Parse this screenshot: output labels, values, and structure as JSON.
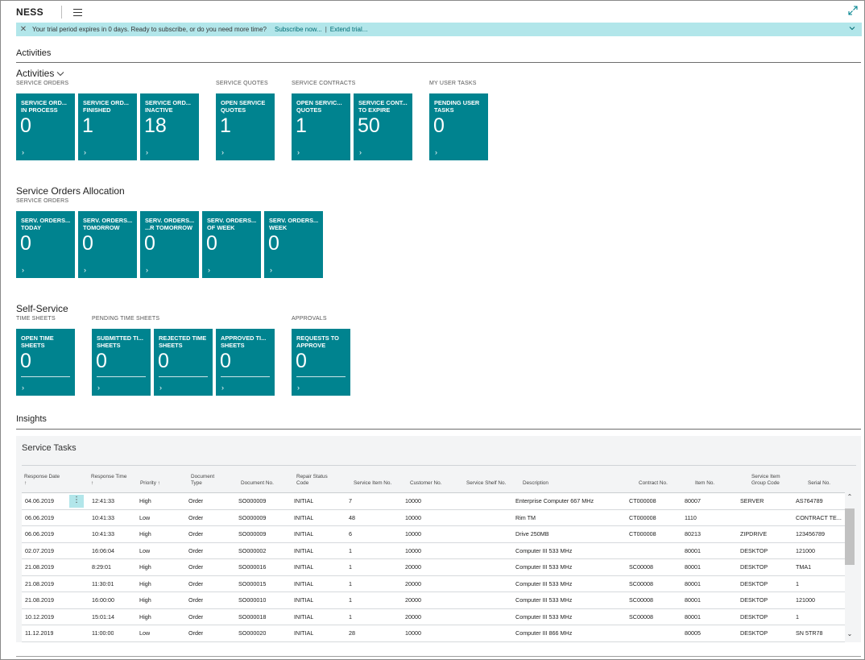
{
  "header": {
    "title": "NESS"
  },
  "banner": {
    "message": "Your trial period expires in 0 days. Ready to subscribe, or do you need more time?",
    "subscribe": "Subscribe now...",
    "separator": "|",
    "extend": "Extend trial..."
  },
  "sections": {
    "activities_header": "Activities",
    "insights_header": "Insights"
  },
  "activities": {
    "title": "Activities",
    "service_orders": {
      "label": "SERVICE ORDERS",
      "tiles": [
        {
          "label": "SERVICE ORD...\nIN PROCESS",
          "value": "0"
        },
        {
          "label": "SERVICE ORD...\nFINISHED",
          "value": "1"
        },
        {
          "label": "SERVICE ORD...\nINACTIVE",
          "value": "18"
        }
      ]
    },
    "service_quotes": {
      "label": "SERVICE QUOTES",
      "tiles": [
        {
          "label": "OPEN SERVICE\nQUOTES",
          "value": "1"
        }
      ]
    },
    "service_contracts": {
      "label": "SERVICE CONTRACTS",
      "tiles": [
        {
          "label": "OPEN SERVIC...\nQUOTES",
          "value": "1"
        },
        {
          "label": "SERVICE CONT...\nTO EXPIRE",
          "value": "50"
        }
      ]
    },
    "my_user_tasks": {
      "label": "MY USER TASKS",
      "tiles": [
        {
          "label": "PENDING USER\nTASKS",
          "value": "0"
        }
      ]
    }
  },
  "allocation": {
    "title": "Service Orders Allocation",
    "label": "SERVICE ORDERS",
    "tiles": [
      {
        "label": "SERV. ORDERS...\nTODAY",
        "value": "0"
      },
      {
        "label": "SERV. ORDERS...\nTOMORROW",
        "value": "0"
      },
      {
        "label": "SERV. ORDERS...\n...R TOMORROW",
        "value": "0"
      },
      {
        "label": "SERV. ORDERS...\nOF WEEK",
        "value": "0"
      },
      {
        "label": "SERV. ORDERS...\nWEEK",
        "value": "0"
      }
    ]
  },
  "self_service": {
    "title": "Self-Service",
    "time_sheets": {
      "label": "TIME SHEETS",
      "tiles": [
        {
          "label": "OPEN TIME\nSHEETS",
          "value": "0"
        }
      ]
    },
    "pending_time_sheets": {
      "label": "PENDING TIME SHEETS",
      "tiles": [
        {
          "label": "SUBMITTED TI...\nSHEETS",
          "value": "0"
        },
        {
          "label": "REJECTED TIME\nSHEETS",
          "value": "0"
        },
        {
          "label": "APPROVED TI...\nSHEETS",
          "value": "0"
        }
      ]
    },
    "approvals": {
      "label": "APPROVALS",
      "tiles": [
        {
          "label": "REQUESTS TO\nAPPROVE",
          "value": "0"
        }
      ]
    }
  },
  "service_tasks": {
    "title": "Service Tasks",
    "columns": [
      {
        "label": "Response Date\n↑"
      },
      {
        "label": "Response Time\n↑"
      },
      {
        "label": "Priority ↑"
      },
      {
        "label": "Document\nType"
      },
      {
        "label": "Document No."
      },
      {
        "label": "Repair Status\nCode"
      },
      {
        "label": "Service Item No."
      },
      {
        "label": "Customer No."
      },
      {
        "label": "Service Shelf No."
      },
      {
        "label": "Description"
      },
      {
        "label": "Contract No."
      },
      {
        "label": "Item No."
      },
      {
        "label": "Service Item\nGroup Code"
      },
      {
        "label": "Serial No."
      }
    ],
    "rows": [
      [
        "04.06.2019",
        "12:41:33",
        "High",
        "Order",
        "SO000009",
        "INITIAL",
        "7",
        "10000",
        "",
        "Enterprise Computer 667 MHz",
        "CT000008",
        "80007",
        "SERVER",
        "AS764789"
      ],
      [
        "06.06.2019",
        "10:41:33",
        "Low",
        "Order",
        "SO000009",
        "INITIAL",
        "48",
        "10000",
        "",
        "Rim TM",
        "CT000008",
        "1110",
        "",
        "CONTRACT TE..."
      ],
      [
        "06.06.2019",
        "10:41:33",
        "High",
        "Order",
        "SO000009",
        "INITIAL",
        "6",
        "10000",
        "",
        "Drive 250MB",
        "CT000008",
        "80213",
        "ZIPDRIVE",
        "123456789"
      ],
      [
        "02.07.2019",
        "16:06:04",
        "Low",
        "Order",
        "SO000002",
        "INITIAL",
        "1",
        "10000",
        "",
        "Computer III 533 MHz",
        "",
        "80001",
        "DESKTOP",
        "121000"
      ],
      [
        "21.08.2019",
        "8:29:01",
        "High",
        "Order",
        "SO000016",
        "INITIAL",
        "1",
        "20000",
        "",
        "Computer III 533 MHz",
        "SC00008",
        "80001",
        "DESKTOP",
        "TMA1"
      ],
      [
        "21.08.2019",
        "11:30:01",
        "High",
        "Order",
        "SO000015",
        "INITIAL",
        "1",
        "20000",
        "",
        "Computer III 533 MHz",
        "SC00008",
        "80001",
        "DESKTOP",
        "1"
      ],
      [
        "21.08.2019",
        "16:00:00",
        "High",
        "Order",
        "SO000010",
        "INITIAL",
        "1",
        "20000",
        "",
        "Computer III 533 MHz",
        "SC00008",
        "80001",
        "DESKTOP",
        "121000"
      ],
      [
        "10.12.2019",
        "15:01:14",
        "High",
        "Order",
        "SO000018",
        "INITIAL",
        "1",
        "20000",
        "",
        "Computer III 533 MHz",
        "SC00008",
        "80001",
        "DESKTOP",
        "1"
      ],
      [
        "11.12.2019",
        "11:00:00",
        "Low",
        "Order",
        "SO000020",
        "INITIAL",
        "28",
        "10000",
        "",
        "Computer III 866 MHz",
        "",
        "80005",
        "DESKTOP",
        "SN 5TR78"
      ]
    ]
  },
  "colors": {
    "tile": "#00838f",
    "banner": "#b2e6ea",
    "link": "#006b73"
  },
  "icons": {
    "menu": "hamburger-icon",
    "expand": "expand-icon",
    "close": "close-icon",
    "collapse": "chevron-down-icon",
    "tile_arrow": "chevron-right-icon"
  }
}
